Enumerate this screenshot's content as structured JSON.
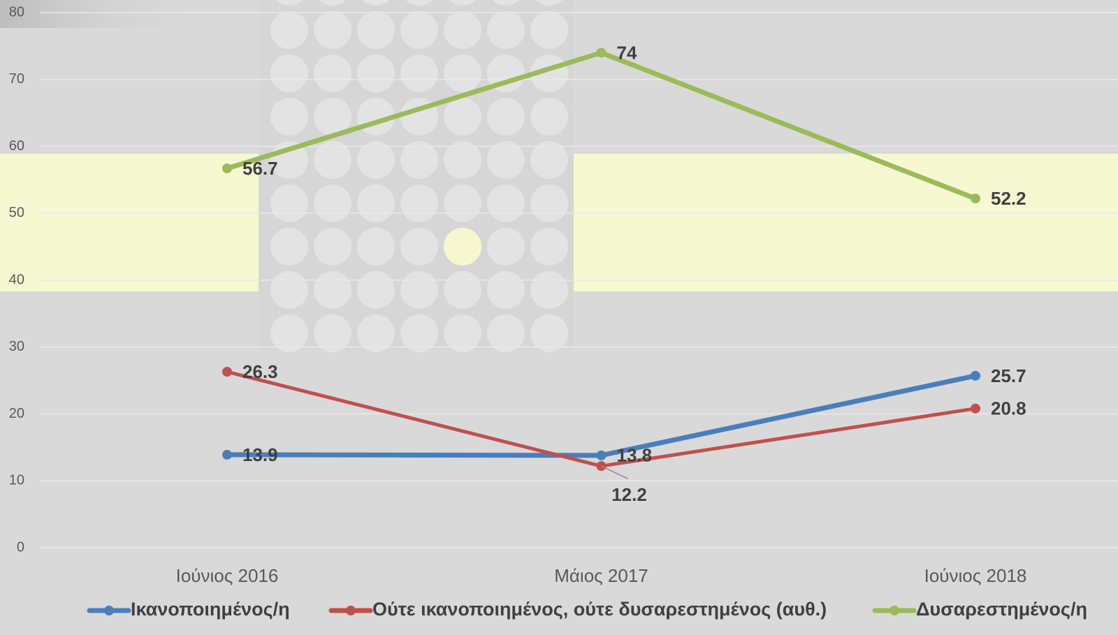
{
  "chart_data": {
    "type": "line",
    "categories": [
      "Ιούνιος 2016",
      "Μάιος 2017",
      "Ιούνιος 2018"
    ],
    "series": [
      {
        "name": "Ικανοποιημένος/η",
        "color": "#4a7ebb",
        "values": [
          13.9,
          13.8,
          25.7
        ]
      },
      {
        "name": "Ούτε ικανοποιημένος, ούτε δυσαρεστημένος (αυθ.)",
        "color": "#c0504d",
        "values": [
          26.3,
          12.2,
          20.8
        ]
      },
      {
        "name": "Δυσαρεστημένος/η",
        "color": "#9bbb59",
        "values": [
          56.7,
          74,
          52.2
        ]
      }
    ],
    "ylim": [
      0,
      80
    ],
    "yticks": [
      0,
      10,
      20,
      30,
      40,
      50,
      60,
      70,
      80
    ],
    "grid": true,
    "legend": "bottom"
  }
}
